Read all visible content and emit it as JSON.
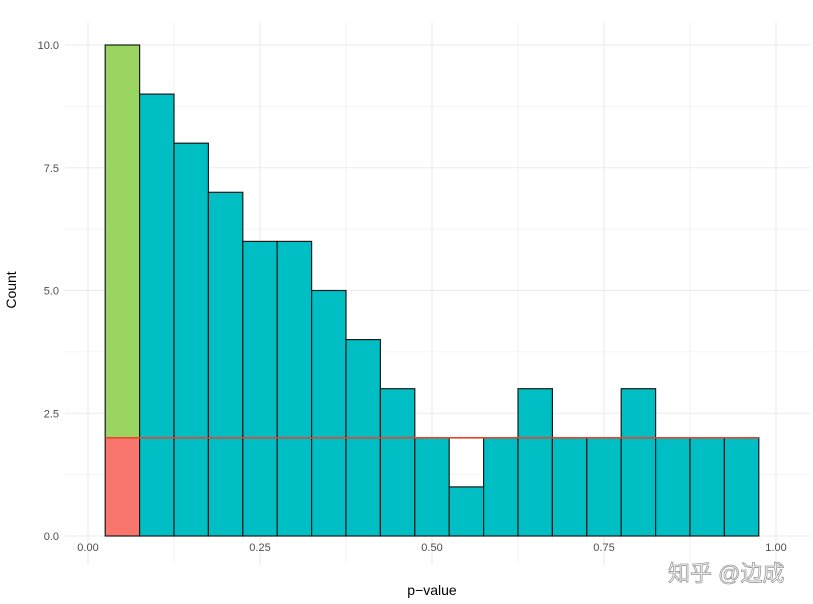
{
  "chart_data": {
    "type": "bar",
    "subtype": "histogram",
    "xlabel": "p−value",
    "ylabel": "Count",
    "xlim": [
      -0.03,
      1.05
    ],
    "ylim": [
      -0.35,
      10.5
    ],
    "x_ticks": [
      "0.00",
      "0.25",
      "0.50",
      "0.75",
      "1.00"
    ],
    "x_tick_values": [
      0,
      0.25,
      0.5,
      0.75,
      1.0
    ],
    "y_ticks": [
      "0.0",
      "2.5",
      "5.0",
      "7.5",
      "10.0"
    ],
    "y_tick_values": [
      0,
      2.5,
      5,
      7.5,
      10
    ],
    "bin_width": 0.05,
    "bin_centers": [
      0.05,
      0.1,
      0.15,
      0.2,
      0.25,
      0.3,
      0.35,
      0.4,
      0.45,
      0.5,
      0.55,
      0.6,
      0.65,
      0.7,
      0.75,
      0.8,
      0.85,
      0.9,
      0.95
    ],
    "counts": [
      10,
      9,
      8,
      7,
      6,
      6,
      5,
      4,
      3,
      2,
      1,
      2,
      3,
      2,
      2,
      3,
      2,
      2,
      2
    ],
    "highlight": {
      "bin_index": 0,
      "lower_count": 2,
      "lower_color": "#F8766D",
      "upper_color": "#9AD461"
    },
    "bar_color": "#00BFC4",
    "reference_line": {
      "y": 2,
      "x_range": [
        0.025,
        0.975
      ],
      "color": "#E8452C"
    },
    "grid": true
  },
  "watermark": "知乎 @边成"
}
